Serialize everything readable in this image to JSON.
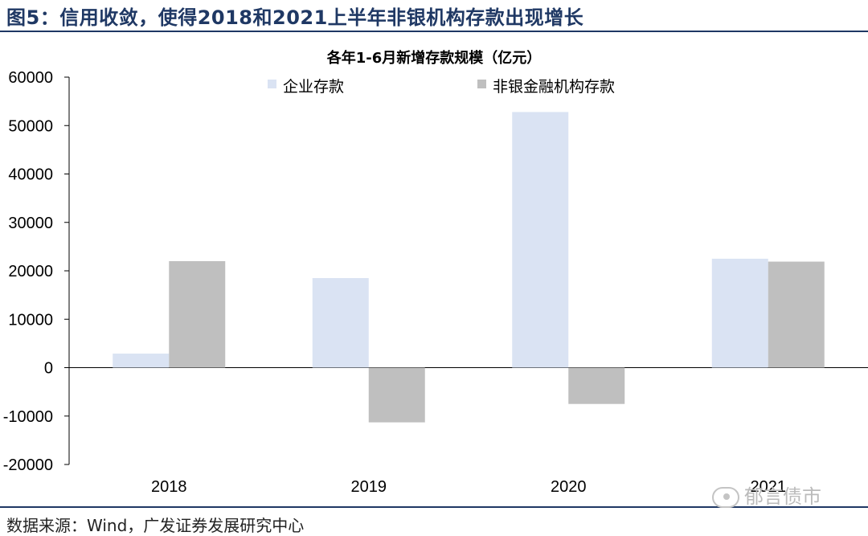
{
  "figure_title": "图5：信用收敛，使得2018和2021上半年非银机构存款出现增长",
  "source": "数据来源：Wind，广发证券发展研究中心",
  "watermark": "郁言债市",
  "colors": {
    "corporate": "#dae3f3",
    "nonbank": "#bfbfbf",
    "header": "#1f3864"
  },
  "chart_data": {
    "type": "bar",
    "title": "各年1-6月新增存款规模（亿元）",
    "xlabel": "",
    "ylabel": "",
    "categories": [
      "2018",
      "2019",
      "2020",
      "2021"
    ],
    "series": [
      {
        "name": "企业存款",
        "values": [
          2900,
          18500,
          52800,
          22500
        ]
      },
      {
        "name": "非银金融机构存款",
        "values": [
          22000,
          -11300,
          -7500,
          21900
        ]
      }
    ],
    "ylim": [
      -20000,
      60000
    ],
    "yticks": [
      "60000",
      "50000",
      "40000",
      "30000",
      "20000",
      "10000",
      "0",
      "-10000",
      "-20000"
    ],
    "legend": "top",
    "grid": false
  }
}
